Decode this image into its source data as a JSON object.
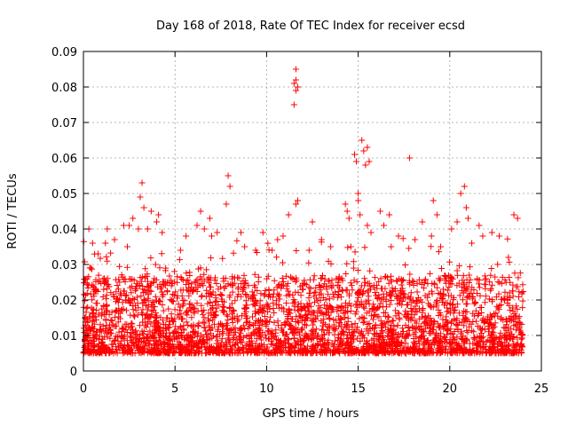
{
  "chart_data": {
    "type": "scatter",
    "title": "Day 168 of 2018, Rate Of TEC Index for receiver ecsd",
    "xlabel": "GPS time / hours",
    "ylabel": "ROTI / TECUs",
    "xlim": [
      0,
      25
    ],
    "ylim": [
      0,
      0.09
    ],
    "xticks": [
      0,
      5,
      10,
      15,
      20,
      25
    ],
    "xtick_labels": [
      "0",
      "5",
      "10",
      "15",
      "20",
      "25"
    ],
    "yticks": [
      0,
      0.01,
      0.02,
      0.03,
      0.04,
      0.05,
      0.06,
      0.07,
      0.08,
      0.09
    ],
    "ytick_labels": [
      "0",
      "0.01",
      "0.02",
      "0.03",
      "0.04",
      "0.05",
      "0.06",
      "0.07",
      "0.08",
      "0.09"
    ],
    "grid": true,
    "marker": "+",
    "color": "#ff0000",
    "series": [
      {
        "name": "ROTI",
        "x": [
          0.2,
          0.3,
          0.4,
          0.5,
          0.8,
          1.2,
          1.3,
          1.7,
          2.2,
          2.4,
          2.5,
          2.7,
          3.0,
          3.1,
          3.2,
          3.3,
          3.5,
          3.7,
          4.0,
          4.1,
          4.3,
          5.3,
          5.6,
          6.2,
          6.4,
          6.6,
          6.9,
          7.0,
          7.3,
          7.8,
          7.9,
          8.0,
          8.6,
          8.8,
          9.4,
          9.8,
          10.3,
          10.6,
          10.9,
          11.2,
          11.5,
          11.5,
          11.6,
          11.6,
          11.6,
          11.7,
          11.6,
          11.7,
          12.5,
          13.0,
          13.5,
          14.3,
          14.4,
          14.5,
          14.6,
          14.8,
          14.9,
          15.0,
          15.0,
          15.1,
          15.2,
          15.3,
          15.4,
          15.5,
          15.5,
          15.6,
          15.7,
          16.2,
          16.4,
          16.7,
          16.8,
          17.2,
          17.8,
          18.1,
          18.5,
          19.0,
          19.1,
          19.3,
          19.5,
          20.1,
          20.4,
          20.6,
          20.8,
          20.9,
          21.0,
          21.2,
          21.6,
          21.8,
          22.3,
          22.7,
          23.2,
          23.5,
          23.7
        ],
        "y": [
          0.026,
          0.04,
          0.029,
          0.036,
          0.033,
          0.036,
          0.04,
          0.037,
          0.041,
          0.035,
          0.041,
          0.043,
          0.04,
          0.049,
          0.053,
          0.046,
          0.04,
          0.045,
          0.042,
          0.044,
          0.039,
          0.034,
          0.038,
          0.041,
          0.045,
          0.04,
          0.043,
          0.038,
          0.039,
          0.047,
          0.055,
          0.052,
          0.039,
          0.035,
          0.034,
          0.039,
          0.034,
          0.037,
          0.038,
          0.044,
          0.075,
          0.081,
          0.079,
          0.082,
          0.085,
          0.08,
          0.047,
          0.048,
          0.042,
          0.037,
          0.035,
          0.047,
          0.045,
          0.043,
          0.035,
          0.061,
          0.059,
          0.05,
          0.048,
          0.044,
          0.065,
          0.062,
          0.058,
          0.063,
          0.041,
          0.059,
          0.039,
          0.045,
          0.041,
          0.044,
          0.035,
          0.038,
          0.06,
          0.037,
          0.042,
          0.038,
          0.048,
          0.044,
          0.035,
          0.04,
          0.042,
          0.05,
          0.052,
          0.046,
          0.043,
          0.036,
          0.041,
          0.038,
          0.039,
          0.038,
          0.032,
          0.044,
          0.043
        ]
      }
    ]
  }
}
